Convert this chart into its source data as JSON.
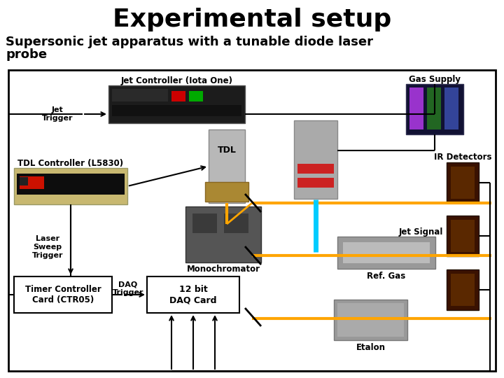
{
  "title": "Experimental setup",
  "subtitle_line1": "Supersonic jet apparatus with a tunable diode laser",
  "subtitle_line2": "probe",
  "title_fontsize": 26,
  "subtitle_fontsize": 13,
  "bg_color": "#ffffff",
  "labels": {
    "jet_controller": "Jet Controller (Iota One)",
    "tdl_controller": "TDL Controller (L5830)",
    "timer_controller": "Timer Controller\nCard (CTR05)",
    "daq_card": "12 bit\nDAQ Card",
    "tdl": "TDL",
    "monochromator": "Monochromator",
    "gas_supply": "Gas Supply",
    "ir_detectors": "IR Detectors",
    "jet_signal": "Jet Signal",
    "ref_gas": "Ref. Gas",
    "etalon": "Etalon",
    "jet_trigger": "Jet\nTrigger",
    "laser_sweep": "Laser\nSweep\nTrigger",
    "daq_trigger": "DAQ\nTrigger"
  },
  "orange": "#FFA500",
  "cyan": "#00CCFF",
  "lw": 1.5
}
